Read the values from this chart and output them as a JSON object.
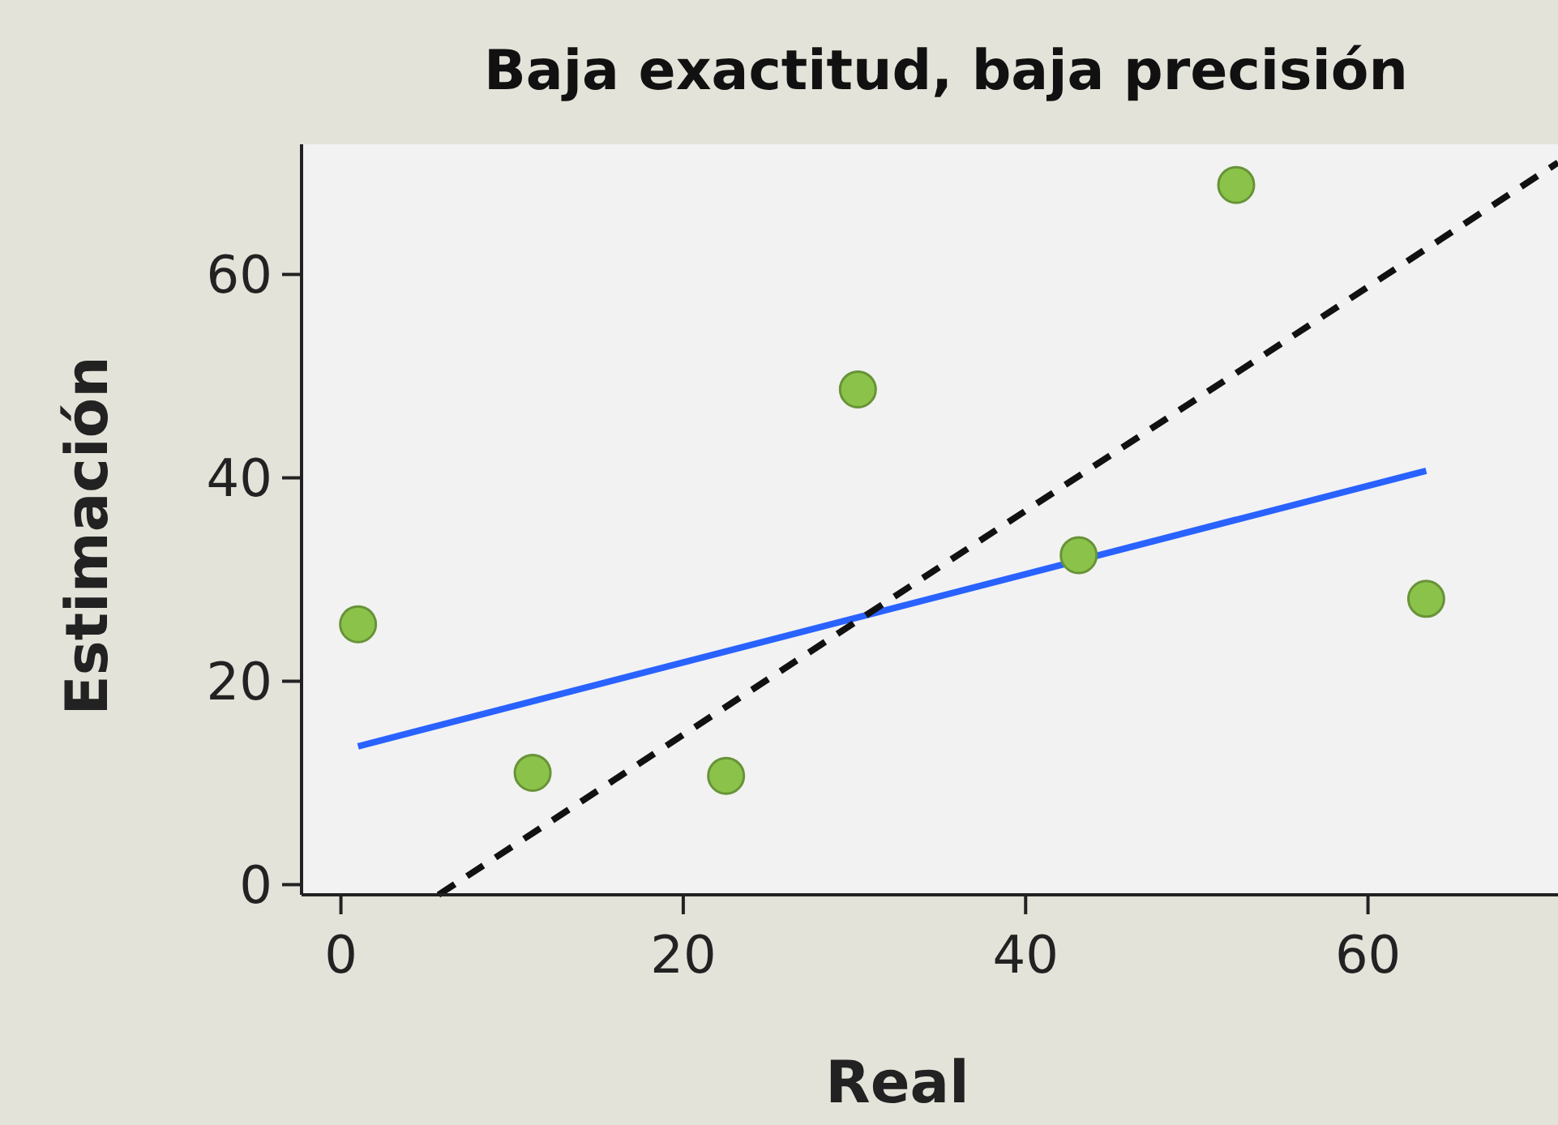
{
  "chart_data": {
    "type": "scatter",
    "title": "Baja exactitud, baja precisión",
    "xlabel": "Real",
    "ylabel": "Estimación",
    "xlim": [
      -2.3,
      71.1
    ],
    "ylim": [
      -1,
      72.8
    ],
    "xticks": [
      0,
      20,
      40,
      60
    ],
    "yticks": [
      0,
      20,
      40,
      60
    ],
    "grid": false,
    "series": [
      {
        "type": "scatter",
        "color": "#8bc34a",
        "marker": "circle",
        "x": [
          1.0,
          11.2,
          22.5,
          30.2,
          43.1,
          52.3,
          63.4
        ],
        "values": [
          25.6,
          11.0,
          10.7,
          48.7,
          32.4,
          68.8,
          28.1
        ]
      },
      {
        "type": "line",
        "color": "#2962ff",
        "marker": "none",
        "line_style": "solid",
        "x": [
          1.0,
          63.4
        ],
        "values": [
          13.6,
          40.7
        ]
      },
      {
        "type": "line",
        "color": "#111111",
        "marker": "none",
        "line_style": "dashed",
        "x": [
          5.7,
          71.1
        ],
        "values": [
          -1.0,
          71.0
        ]
      }
    ]
  }
}
